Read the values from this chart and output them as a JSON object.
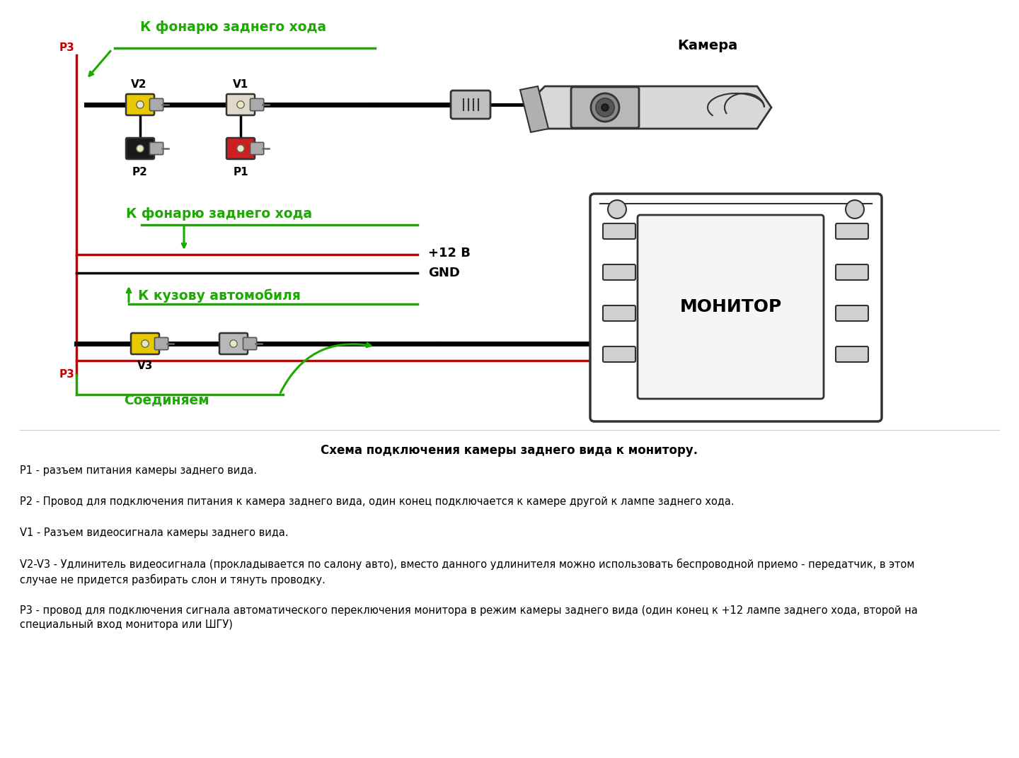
{
  "bg_color": "#ffffff",
  "green_color": "#1aaa00",
  "red_color": "#cc0000",
  "black_color": "#000000",
  "yellow_color": "#e8c800",
  "gray_color": "#888888",
  "light_gray": "#d0d0d0",
  "dark_gray": "#333333",
  "title_text": "Схема подключения камеры заднего вида к монитору.",
  "camera_label": "Камера",
  "monitor_label": "МОНИТОР",
  "plus12v_label": "+12 В",
  "gnd_label": "GND",
  "k_fonarju_label1": "К фонарю заднего хода",
  "k_fonarju_label2": "К фонарю заднего хода",
  "k_kuzovu_label": "К кузову автомобиля",
  "soedinjaem_label": "Соединяем",
  "p1_label": "P1",
  "p2_label": "P2",
  "p3_label": "P3",
  "v1_label": "V1",
  "v2_label": "V2",
  "v3_label": "V3",
  "desc_p1": "P1 - разъем питания камеры заднего вида.",
  "desc_p2": "P2 - Провод для подключения питания к камера заднего вида, один конец подключается к камере другой к лампе заднего хода.",
  "desc_v1": "V1 - Разъем видеосигнала камеры заднего вида.",
  "desc_v2v3": "V2-V3 - Удлинитель видеосигнала (прокладывается по салону авто), вместо данного удлинителя можно использовать беспроводной приемо - передатчик, в этом случае не придется разбирать слон и тянуть проводку.",
  "desc_p3": "P3 - провод для подключения сигнала автоматического переключения монитора в режим камеры заднего вида (один конец к +12 лампе заднего хода, второй на специальный вход монитора или ШГУ)"
}
